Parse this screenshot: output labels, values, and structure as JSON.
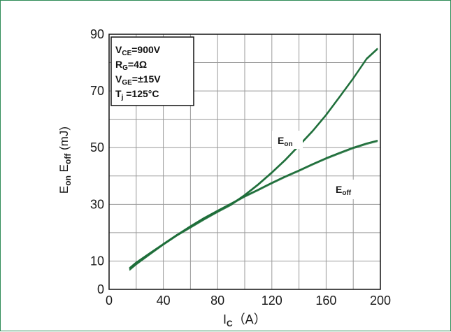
{
  "chart_data": {
    "type": "line",
    "xlabel": {
      "main": "I",
      "sub": "C",
      "unit": "（A）"
    },
    "ylabel": {
      "p1": "E",
      "s1": "on",
      "p2": " E",
      "s2": "off",
      "unit": " (mJ)"
    },
    "xlim": [
      0,
      200
    ],
    "ylim": [
      0,
      90
    ],
    "xticks": [
      0,
      40,
      80,
      120,
      160,
      200
    ],
    "yticks": [
      0,
      10,
      30,
      50,
      70,
      90
    ],
    "grid": true,
    "line_color": "#1e6e3a",
    "series": [
      {
        "name_main": "E",
        "name_sub": "on",
        "x": [
          15,
          20,
          30,
          40,
          50,
          60,
          70,
          80,
          90,
          100,
          110,
          120,
          130,
          140,
          150,
          160,
          170,
          180,
          190,
          198
        ],
        "y": [
          7.5,
          9.5,
          12.8,
          16.0,
          19.2,
          22.0,
          24.8,
          27.5,
          30.0,
          33.3,
          37.1,
          41.3,
          45.8,
          50.8,
          55.9,
          61.6,
          68.0,
          74.5,
          81.5,
          85.0
        ]
      },
      {
        "name_main": "E",
        "name_sub": "off",
        "x": [
          15,
          20,
          30,
          40,
          50,
          60,
          70,
          80,
          90,
          100,
          110,
          120,
          130,
          140,
          150,
          160,
          170,
          180,
          190,
          198
        ],
        "y": [
          7.0,
          9.0,
          12.5,
          16.0,
          19.2,
          22.3,
          25.2,
          27.8,
          30.3,
          32.9,
          35.2,
          37.6,
          39.9,
          42.0,
          44.2,
          46.3,
          48.2,
          50.0,
          51.5,
          52.5
        ]
      }
    ],
    "conditions": [
      {
        "main": "V",
        "sub": "CE",
        "rest": "=900V"
      },
      {
        "main": "R",
        "sub": "G",
        "rest": "=4Ω"
      },
      {
        "main": "V",
        "sub": "GE",
        "rest": "=±15V"
      },
      {
        "main": "T",
        "sub": "j",
        "rest": " =125°C"
      }
    ]
  }
}
